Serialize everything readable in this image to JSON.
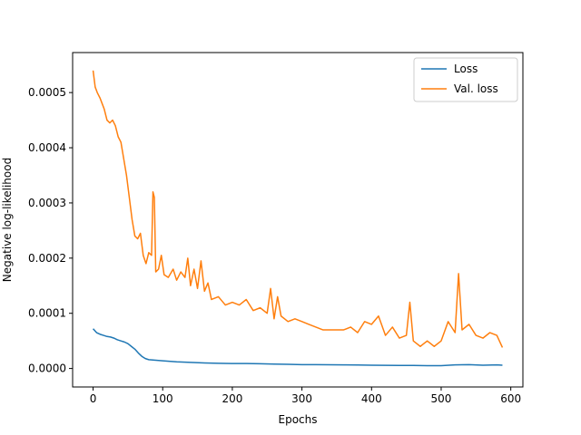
{
  "chart_data": {
    "type": "line",
    "title": "",
    "xlabel": "Epochs",
    "ylabel": "Negative log-likelihood",
    "xlim": [
      -29.4,
      617.4
    ],
    "ylim": [
      -3.35e-05,
      0.0005725
    ],
    "xticks": [
      0,
      100,
      200,
      300,
      400,
      500,
      600
    ],
    "xtick_labels": [
      "0",
      "100",
      "200",
      "300",
      "400",
      "500",
      "600"
    ],
    "yticks": [
      0.0,
      0.0001,
      0.0002,
      0.0003,
      0.0004,
      0.0005
    ],
    "ytick_labels": [
      "0.0000",
      "0.0001",
      "0.0002",
      "0.0003",
      "0.0004",
      "0.0005"
    ],
    "grid": false,
    "legend_position": "top-right",
    "series": [
      {
        "name": "Loss",
        "color": "#1f77b4",
        "points": [
          [
            0,
            7.2e-05
          ],
          [
            5,
            6.5e-05
          ],
          [
            10,
            6.2e-05
          ],
          [
            15,
            6e-05
          ],
          [
            20,
            5.8e-05
          ],
          [
            25,
            5.7e-05
          ],
          [
            30,
            5.5e-05
          ],
          [
            35,
            5.2e-05
          ],
          [
            40,
            5e-05
          ],
          [
            45,
            4.8e-05
          ],
          [
            50,
            4.5e-05
          ],
          [
            55,
            4e-05
          ],
          [
            60,
            3.5e-05
          ],
          [
            65,
            2.8e-05
          ],
          [
            70,
            2.2e-05
          ],
          [
            75,
            1.8e-05
          ],
          [
            80,
            1.6e-05
          ],
          [
            90,
            1.5e-05
          ],
          [
            100,
            1.4e-05
          ],
          [
            120,
            1.2e-05
          ],
          [
            140,
            1.1e-05
          ],
          [
            160,
            1e-05
          ],
          [
            180,
            9.5e-06
          ],
          [
            200,
            9e-06
          ],
          [
            220,
            9e-06
          ],
          [
            240,
            8.5e-06
          ],
          [
            260,
            8e-06
          ],
          [
            280,
            7.5e-06
          ],
          [
            300,
            7e-06
          ],
          [
            320,
            7e-06
          ],
          [
            340,
            6.8e-06
          ],
          [
            360,
            6.5e-06
          ],
          [
            380,
            6.3e-06
          ],
          [
            400,
            6e-06
          ],
          [
            420,
            5.8e-06
          ],
          [
            440,
            5.6e-06
          ],
          [
            460,
            5.5e-06
          ],
          [
            480,
            5.2e-06
          ],
          [
            500,
            5e-06
          ],
          [
            520,
            6.5e-06
          ],
          [
            540,
            7e-06
          ],
          [
            560,
            6e-06
          ],
          [
            580,
            6.5e-06
          ],
          [
            588,
            6e-06
          ]
        ]
      },
      {
        "name": "Val. loss",
        "color": "#ff7f0e",
        "points": [
          [
            0,
            0.00054
          ],
          [
            3,
            0.00051
          ],
          [
            6,
            0.0005
          ],
          [
            10,
            0.00049
          ],
          [
            13,
            0.00048
          ],
          [
            16,
            0.00047
          ],
          [
            20,
            0.00045
          ],
          [
            24,
            0.000445
          ],
          [
            28,
            0.00045
          ],
          [
            32,
            0.00044
          ],
          [
            36,
            0.00042
          ],
          [
            40,
            0.00041
          ],
          [
            44,
            0.00038
          ],
          [
            48,
            0.00035
          ],
          [
            52,
            0.00031
          ],
          [
            56,
            0.00027
          ],
          [
            60,
            0.00024
          ],
          [
            64,
            0.000235
          ],
          [
            68,
            0.000245
          ],
          [
            72,
            0.000205
          ],
          [
            76,
            0.00019
          ],
          [
            80,
            0.00021
          ],
          [
            84,
            0.000205
          ],
          [
            86,
            0.00032
          ],
          [
            88,
            0.00031
          ],
          [
            90,
            0.000175
          ],
          [
            94,
            0.00018
          ],
          [
            98,
            0.000205
          ],
          [
            102,
            0.00017
          ],
          [
            108,
            0.000165
          ],
          [
            115,
            0.00018
          ],
          [
            120,
            0.00016
          ],
          [
            126,
            0.000175
          ],
          [
            132,
            0.000165
          ],
          [
            136,
            0.0002
          ],
          [
            140,
            0.00015
          ],
          [
            145,
            0.00018
          ],
          [
            150,
            0.000145
          ],
          [
            155,
            0.000195
          ],
          [
            160,
            0.00014
          ],
          [
            165,
            0.000155
          ],
          [
            170,
            0.000125
          ],
          [
            180,
            0.00013
          ],
          [
            190,
            0.000115
          ],
          [
            200,
            0.00012
          ],
          [
            210,
            0.000115
          ],
          [
            220,
            0.000125
          ],
          [
            230,
            0.000105
          ],
          [
            240,
            0.00011
          ],
          [
            250,
            0.0001
          ],
          [
            255,
            0.000145
          ],
          [
            260,
            9e-05
          ],
          [
            265,
            0.00013
          ],
          [
            270,
            9.5e-05
          ],
          [
            280,
            8.5e-05
          ],
          [
            290,
            9e-05
          ],
          [
            300,
            8.5e-05
          ],
          [
            310,
            8e-05
          ],
          [
            320,
            7.5e-05
          ],
          [
            330,
            7e-05
          ],
          [
            340,
            7e-05
          ],
          [
            350,
            7e-05
          ],
          [
            360,
            7e-05
          ],
          [
            370,
            7.5e-05
          ],
          [
            380,
            6.5e-05
          ],
          [
            390,
            8.5e-05
          ],
          [
            400,
            8e-05
          ],
          [
            410,
            9.5e-05
          ],
          [
            420,
            6e-05
          ],
          [
            430,
            7.5e-05
          ],
          [
            440,
            5.5e-05
          ],
          [
            450,
            6e-05
          ],
          [
            455,
            0.00012
          ],
          [
            460,
            5e-05
          ],
          [
            470,
            4e-05
          ],
          [
            480,
            5e-05
          ],
          [
            490,
            4e-05
          ],
          [
            500,
            5e-05
          ],
          [
            510,
            8.5e-05
          ],
          [
            520,
            6.5e-05
          ],
          [
            525,
            0.000172
          ],
          [
            530,
            7e-05
          ],
          [
            540,
            8e-05
          ],
          [
            550,
            6e-05
          ],
          [
            560,
            5.5e-05
          ],
          [
            570,
            6.5e-05
          ],
          [
            580,
            6e-05
          ],
          [
            588,
            3.8e-05
          ]
        ]
      }
    ]
  }
}
